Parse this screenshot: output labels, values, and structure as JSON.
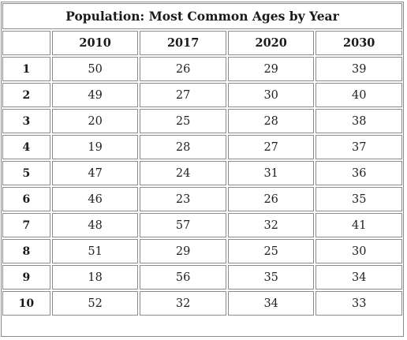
{
  "table": {
    "title": "Population: Most Common Ages by Year",
    "corner": "",
    "columns": [
      "2010",
      "2017",
      "2020",
      "2030"
    ],
    "rows": [
      {
        "label": "1",
        "values": [
          "50",
          "26",
          "29",
          "39"
        ]
      },
      {
        "label": "2",
        "values": [
          "49",
          "27",
          "30",
          "40"
        ]
      },
      {
        "label": "3",
        "values": [
          "20",
          "25",
          "28",
          "38"
        ]
      },
      {
        "label": "4",
        "values": [
          "19",
          "28",
          "27",
          "37"
        ]
      },
      {
        "label": "5",
        "values": [
          "47",
          "24",
          "31",
          "36"
        ]
      },
      {
        "label": "6",
        "values": [
          "46",
          "23",
          "26",
          "35"
        ]
      },
      {
        "label": "7",
        "values": [
          "48",
          "57",
          "32",
          "41"
        ]
      },
      {
        "label": "8",
        "values": [
          "51",
          "29",
          "25",
          "30"
        ]
      },
      {
        "label": "9",
        "values": [
          "18",
          "56",
          "35",
          "34"
        ]
      },
      {
        "label": "10",
        "values": [
          "52",
          "32",
          "34",
          "33"
        ]
      }
    ]
  }
}
